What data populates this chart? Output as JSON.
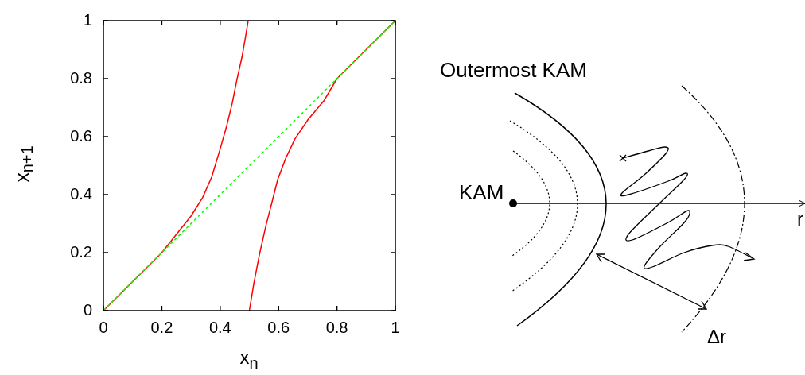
{
  "chart_data": [
    {
      "type": "line",
      "xlabel": "x$_{n}$",
      "ylabel": "x$_{n+1}$",
      "xlim": [
        0,
        1
      ],
      "ylim": [
        0,
        1
      ],
      "xticks": [
        0,
        0.2,
        0.4,
        0.6,
        0.8,
        1
      ],
      "yticks": [
        0,
        0.2,
        0.4,
        0.6,
        0.8,
        1
      ],
      "marker": "none",
      "line_style": "solid",
      "series": [
        {
          "color": "#ff0000",
          "x": [
            0,
            0.2,
            0.25,
            0.3,
            0.34,
            0.371,
            0.398,
            0.421,
            0.441,
            0.457,
            0.475,
            0.489,
            0.496
          ],
          "values": [
            0,
            0.2,
            0.263,
            0.326,
            0.39,
            0.461,
            0.551,
            0.632,
            0.714,
            0.795,
            0.876,
            0.957,
            1
          ]
        },
        {
          "color": "#ff0000",
          "x": [
            0.5,
            0.515,
            0.534,
            0.556,
            0.579,
            0.597,
            0.624,
            0.656,
            0.701,
            0.755,
            0.8,
            1
          ],
          "values": [
            0,
            0.092,
            0.191,
            0.29,
            0.38,
            0.452,
            0.524,
            0.592,
            0.659,
            0.723,
            0.8,
            1
          ]
        },
        {
          "color": "#00ff00",
          "line_style": "dashed",
          "x": [
            0,
            1
          ],
          "values": [
            0,
            1
          ]
        }
      ]
    },
    {
      "type": "other",
      "annotations": [
        "Outermost KAM",
        "KAM",
        "r",
        "Δr"
      ]
    }
  ]
}
